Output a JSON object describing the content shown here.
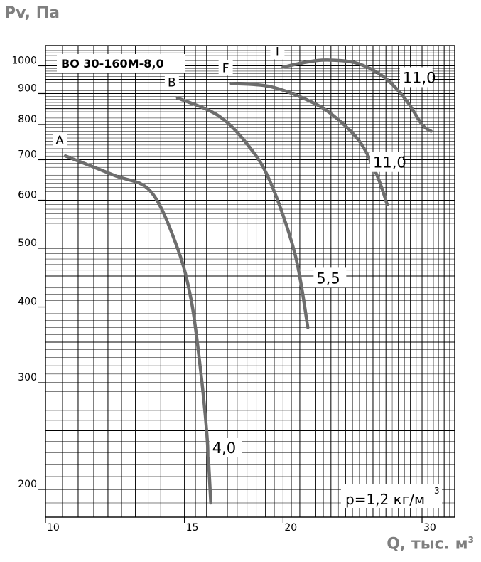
{
  "chart_data": {
    "type": "line",
    "title": "ВО 30-160М-8,0",
    "ylabel": "Pv, Па",
    "xlabel": "Q, тыс. м",
    "xlabel_sup": "3",
    "annotation": "p=1,2 кг/м",
    "annotation_sup": "3",
    "xlim": [
      10,
      33
    ],
    "ylim": [
      180,
      1080
    ],
    "y_scale": "log",
    "x_ticks": [
      10,
      15,
      20,
      30
    ],
    "x_tick_labels": [
      "10",
      "15",
      "20",
      "30"
    ],
    "y_ticks": [
      200,
      300,
      400,
      500,
      600,
      700,
      800,
      900,
      1000
    ],
    "y_tick_labels": [
      "200",
      "300",
      "400",
      "500",
      "600",
      "700",
      "800",
      "900",
      "1000"
    ],
    "grid": true,
    "series": [
      {
        "name": "A",
        "power": "4,0",
        "points": [
          [
            10.6,
            710
          ],
          [
            12.2,
            660
          ],
          [
            13.6,
            620
          ],
          [
            14.7,
            500
          ],
          [
            15.3,
            410
          ],
          [
            15.7,
            320
          ],
          [
            16.0,
            250
          ],
          [
            16.2,
            190
          ]
        ]
      },
      {
        "name": "B",
        "power": "5,5",
        "points": [
          [
            14.7,
            885
          ],
          [
            16.5,
            830
          ],
          [
            17.9,
            750
          ],
          [
            19.2,
            650
          ],
          [
            20.7,
            490
          ],
          [
            21.5,
            370
          ]
        ]
      },
      {
        "name": "F",
        "power": "11,0",
        "points": [
          [
            17.2,
            935
          ],
          [
            19.2,
            925
          ],
          [
            21.4,
            880
          ],
          [
            23.1,
            830
          ],
          [
            25.0,
            750
          ],
          [
            26.3,
            660
          ],
          [
            27.1,
            590
          ]
        ]
      },
      {
        "name": "I",
        "power": "11,0",
        "points": [
          [
            20.0,
            995
          ],
          [
            21.5,
            1015
          ],
          [
            22.8,
            1022
          ],
          [
            24.8,
            1010
          ],
          [
            26.8,
            960
          ],
          [
            28.6,
            880
          ],
          [
            30.0,
            800
          ],
          [
            30.8,
            780
          ]
        ]
      }
    ]
  }
}
